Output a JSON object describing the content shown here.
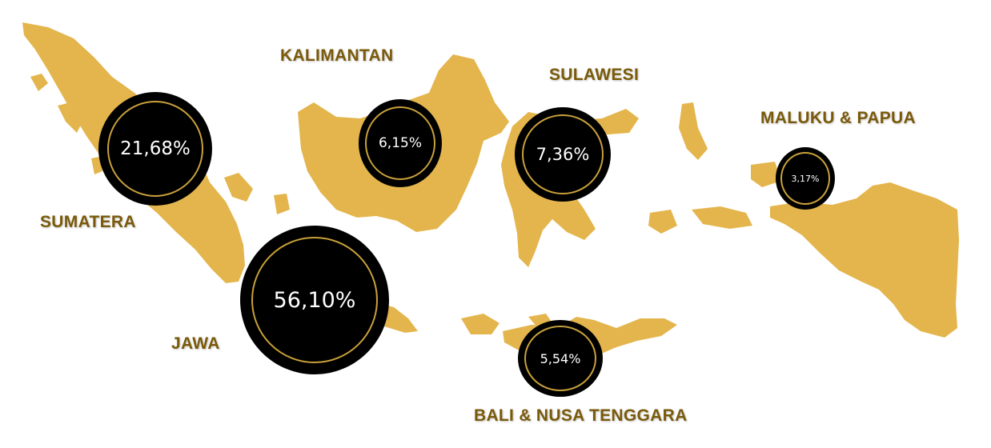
{
  "map": {
    "land_color": "#e3b54c",
    "bubble_color": "#000000",
    "ring_color": "#c9a13b",
    "label_color": "#7a5a0a"
  },
  "regions": [
    {
      "id": "sumatera",
      "label": "SUMATERA",
      "value": "21,68%",
      "share": 21.68
    },
    {
      "id": "jawa",
      "label": "JAWA",
      "value": "56,10%",
      "share": 56.1
    },
    {
      "id": "kalimantan",
      "label": "KALIMANTAN",
      "value": "6,15%",
      "share": 6.15
    },
    {
      "id": "sulawesi",
      "label": "SULAWESI",
      "value": "7,36%",
      "share": 7.36
    },
    {
      "id": "bali-nusa-tenggara",
      "label": "BALI & NUSA TENGGARA",
      "value": "5,54%",
      "share": 5.54
    },
    {
      "id": "maluku-papua",
      "label": "MALUKU & PAPUA",
      "value": "3,17%",
      "share": 3.17
    }
  ]
}
